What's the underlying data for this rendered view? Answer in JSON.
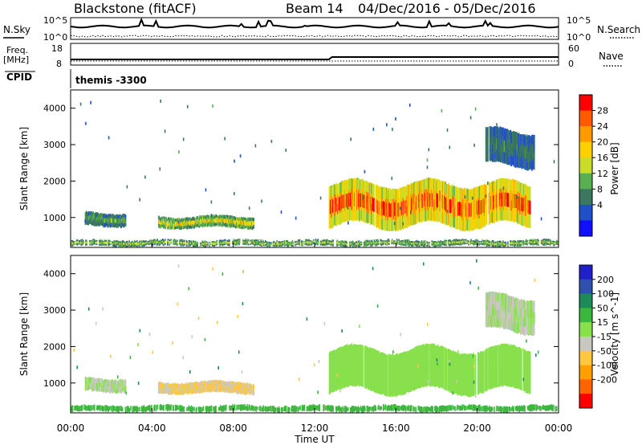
{
  "header": {
    "station": "Blackstone (fitACF)",
    "beam": "Beam 14",
    "dates": "04/Dec/2016 - 05/Dec/2016"
  },
  "summary": {
    "nsky_label": "N.Sky",
    "nsearch_label": "N.Search",
    "freq_label": "Freq.",
    "freq_unit": "[MHz]",
    "nave_label": "Nave",
    "cpid_label": "CPID",
    "cpid_value": "themis -3300",
    "noise_ticks": [
      "10^5",
      "10^0"
    ],
    "freq_ticks": [
      "18",
      "8"
    ],
    "nave_ticks": [
      "60",
      "0"
    ]
  },
  "axes": {
    "y_label": "Slant Range [km]",
    "x_label": "Time UT",
    "x_ticks": [
      "00:00",
      "04:00",
      "08:00",
      "12:00",
      "16:00",
      "20:00",
      "00:00"
    ],
    "y_ticks": [
      "1000",
      "2000",
      "3000",
      "4000"
    ]
  },
  "power_bar": {
    "label": "Power [dB]",
    "ticks": [
      "28",
      "24",
      "20",
      "16",
      "12",
      "8",
      "4"
    ],
    "colors": [
      "#ff0000",
      "#ff5a00",
      "#ff9a00",
      "#ffd000",
      "#c8dc28",
      "#58b050",
      "#3c7860",
      "#2050c8",
      "#1010ff"
    ]
  },
  "velocity_bar": {
    "label": "Velocity [m s^-1]",
    "ticks": [
      "200",
      "100",
      "50",
      "15",
      "-15",
      "-50",
      "-100",
      "-200"
    ],
    "colors": [
      "#2020c8",
      "#3050b0",
      "#1d8a5a",
      "#3cb63c",
      "#88e04c",
      "#c8c8c0",
      "#ffc840",
      "#ffa000",
      "#ff6400",
      "#ff0000"
    ]
  },
  "chart_data": [
    {
      "type": "heatmap",
      "title": "Power",
      "x_range_hours": [
        0,
        24
      ],
      "y_range_km": [
        180,
        4500
      ],
      "colorbar_label": "Power [dB]",
      "features": [
        {
          "t_start": 0,
          "t_end": 24,
          "range_km": [
            200,
            400
          ],
          "power_db": [
            4,
            16
          ]
        },
        {
          "t_start": 0.7,
          "t_end": 2.7,
          "range_km": [
            750,
            1150
          ],
          "power_db": [
            4,
            12
          ]
        },
        {
          "t_start": 4.3,
          "t_end": 9.0,
          "range_km": [
            700,
            1050
          ],
          "power_db": [
            4,
            20
          ]
        },
        {
          "t_start": 12.7,
          "t_end": 22.6,
          "range_km": [
            750,
            1950
          ],
          "power_db": [
            8,
            30
          ]
        },
        {
          "t_start": 20.4,
          "t_end": 22.8,
          "range_km": [
            2400,
            3400
          ],
          "power_db": [
            4,
            8
          ]
        }
      ]
    },
    {
      "type": "heatmap",
      "title": "Velocity",
      "x_range_hours": [
        0,
        24
      ],
      "y_range_km": [
        180,
        4500
      ],
      "colorbar_label": "Velocity [m s^-1]",
      "features": [
        {
          "t_start": 0,
          "t_end": 24,
          "range_km": [
            200,
            400
          ],
          "velocity_ms": [
            15,
            50
          ]
        },
        {
          "t_start": 0.7,
          "t_end": 2.7,
          "range_km": [
            750,
            1150
          ],
          "velocity_ms": [
            -50,
            15
          ]
        },
        {
          "t_start": 4.3,
          "t_end": 9.0,
          "range_km": [
            700,
            1050
          ],
          "velocity_ms": [
            -100,
            -15
          ]
        },
        {
          "t_start": 12.7,
          "t_end": 22.6,
          "range_km": [
            750,
            1950
          ],
          "velocity_ms": [
            -15,
            15
          ]
        },
        {
          "t_start": 20.4,
          "t_end": 22.8,
          "range_km": [
            2400,
            3400
          ],
          "velocity_ms": [
            -50,
            15
          ]
        }
      ]
    }
  ]
}
